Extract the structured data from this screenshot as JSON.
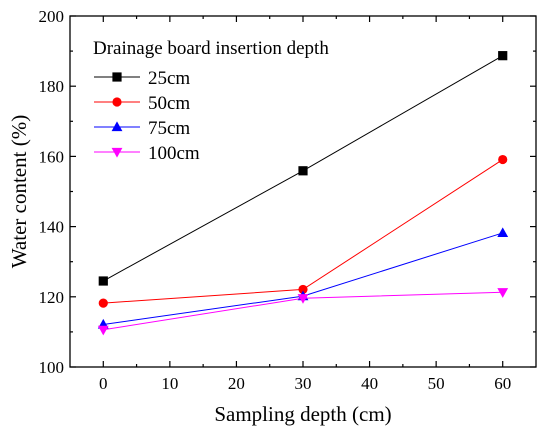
{
  "chart_data": {
    "type": "line",
    "xlabel": "Sampling depth (cm)",
    "ylabel": "Water content (%)",
    "xlim": [
      -5,
      65
    ],
    "ylim": [
      100,
      200
    ],
    "xticks": [
      0,
      10,
      20,
      30,
      40,
      50,
      60
    ],
    "yticks": [
      100,
      120,
      140,
      160,
      180,
      200
    ],
    "grid": false,
    "legend": {
      "title": "Drainage board insertion depth",
      "position": "top-left"
    },
    "x": [
      0,
      30,
      60
    ],
    "series": [
      {
        "name": "25cm",
        "values": [
          124.5,
          155.9,
          188.7
        ],
        "color": "#000000",
        "marker": "square"
      },
      {
        "name": "50cm",
        "values": [
          118.2,
          122.1,
          159.1
        ],
        "color": "#ff0000",
        "marker": "circle"
      },
      {
        "name": "75cm",
        "values": [
          112.1,
          120.2,
          138.2
        ],
        "color": "#0000ff",
        "marker": "triangle-up"
      },
      {
        "name": "100cm",
        "values": [
          110.6,
          119.6,
          121.3
        ],
        "color": "#ff00ff",
        "marker": "triangle-down"
      }
    ]
  }
}
